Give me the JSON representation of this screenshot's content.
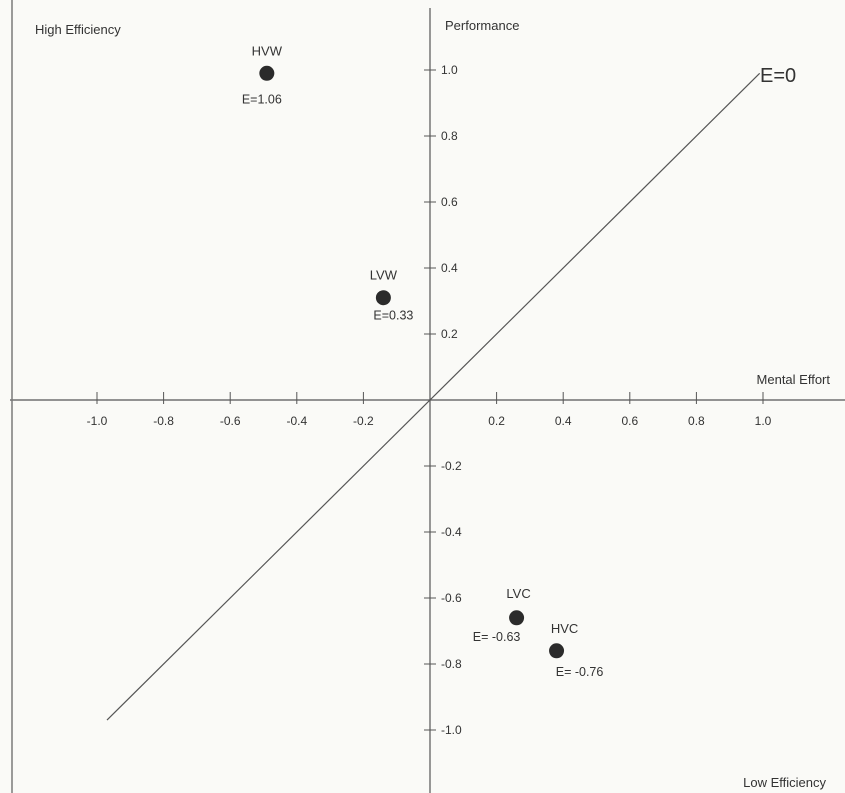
{
  "chart_data": {
    "type": "scatter",
    "title": "",
    "xlabel": "Mental Effort",
    "ylabel": "Performance",
    "quadrant_labels": {
      "top_left": "High Efficiency",
      "bottom_right": "Low Efficiency"
    },
    "xlim": [
      -1.25,
      1.25
    ],
    "ylim": [
      -1.15,
      1.15
    ],
    "x_ticks": [
      {
        "value": -1.0,
        "label": "-1.0"
      },
      {
        "value": -0.8,
        "label": "-0.8"
      },
      {
        "value": -0.6,
        "label": "-0.6"
      },
      {
        "value": -0.4,
        "label": "-0.4"
      },
      {
        "value": -0.2,
        "label": "-0.2"
      },
      {
        "value": 0.2,
        "label": "0.2"
      },
      {
        "value": 0.4,
        "label": "0.4"
      },
      {
        "value": 0.6,
        "label": "0.6"
      },
      {
        "value": 0.8,
        "label": "0.8"
      },
      {
        "value": 1.0,
        "label": "1.0"
      }
    ],
    "y_ticks": [
      {
        "value": 1.0,
        "label": "1.0"
      },
      {
        "value": 0.8,
        "label": "0.8"
      },
      {
        "value": 0.6,
        "label": "0.6"
      },
      {
        "value": 0.4,
        "label": "0.4"
      },
      {
        "value": 0.2,
        "label": "0.2"
      },
      {
        "value": -0.2,
        "label": "-0.2"
      },
      {
        "value": -0.4,
        "label": "-0.4"
      },
      {
        "value": -0.6,
        "label": "-0.6"
      },
      {
        "value": -0.8,
        "label": "-0.8"
      },
      {
        "value": -1.0,
        "label": "-1.0"
      }
    ],
    "points": [
      {
        "name": "HVW",
        "x": -0.49,
        "y": 0.99,
        "efficiency_label": "E=1.06"
      },
      {
        "name": "LVW",
        "x": -0.14,
        "y": 0.31,
        "efficiency_label": "E=0.33"
      },
      {
        "name": "LVC",
        "x": 0.26,
        "y": -0.66,
        "efficiency_label": "E= -0.63"
      },
      {
        "name": "HVC",
        "x": 0.38,
        "y": -0.76,
        "efficiency_label": "E= -0.76"
      }
    ],
    "reference_line": {
      "label": "E=0",
      "x_start": -0.97,
      "x_end": 0.99
    },
    "grid": false
  },
  "colors": {
    "axis": "#555555",
    "points": "#2b2b2b",
    "text": "#333333",
    "background": "#fafaf7"
  }
}
